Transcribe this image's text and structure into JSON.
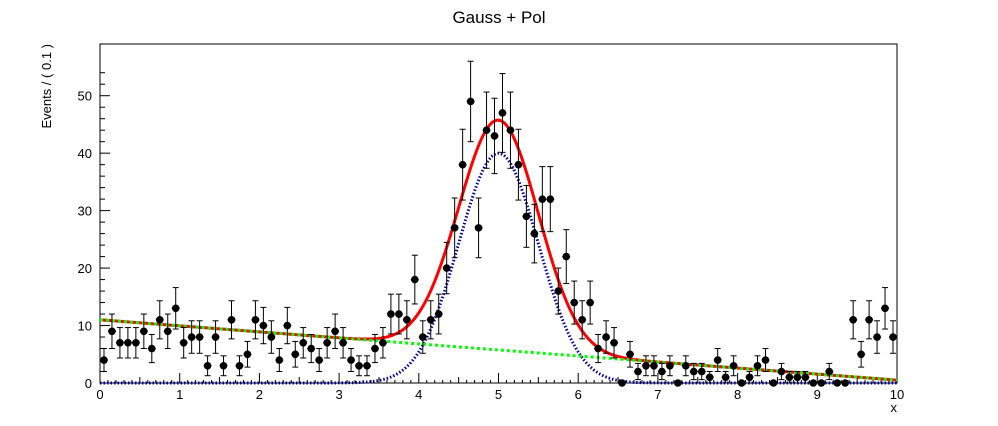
{
  "chart_data": {
    "type": "scatter",
    "title": "Gauss + Pol",
    "xlabel": "x",
    "ylabel": "Events / ( 0.1 )",
    "xlim": [
      0,
      10
    ],
    "ylim": [
      0,
      59
    ],
    "xticks": [
      "0",
      "1",
      "2",
      "3",
      "4",
      "5",
      "6",
      "7",
      "8",
      "9",
      "10"
    ],
    "yticks": [
      "0",
      "10",
      "20",
      "30",
      "40",
      "50"
    ],
    "grid": false,
    "legend": "none",
    "series": [
      {
        "kind": "points-with-errors",
        "color": "#000000",
        "x": [
          0.05,
          0.15,
          0.25,
          0.35,
          0.45,
          0.55,
          0.65,
          0.75,
          0.85,
          0.95,
          1.05,
          1.15,
          1.25,
          1.35,
          1.45,
          1.55,
          1.65,
          1.75,
          1.85,
          1.95,
          2.05,
          2.15,
          2.25,
          2.35,
          2.45,
          2.55,
          2.65,
          2.75,
          2.85,
          2.95,
          3.05,
          3.15,
          3.25,
          3.35,
          3.45,
          3.55,
          3.65,
          3.75,
          3.85,
          3.95,
          4.05,
          4.15,
          4.25,
          4.35,
          4.45,
          4.55,
          4.65,
          4.75,
          4.85,
          4.95,
          5.05,
          5.15,
          5.25,
          5.35,
          5.45,
          5.55,
          5.65,
          5.75,
          5.85,
          5.95,
          6.05,
          6.15,
          6.25,
          6.35,
          6.45,
          6.55,
          6.65,
          6.75,
          6.85,
          6.95,
          7.05,
          7.15,
          7.25,
          7.35,
          7.45,
          7.55,
          7.65,
          7.75,
          7.85,
          7.95,
          8.05,
          8.15,
          8.25,
          8.35,
          8.45,
          8.55,
          8.65,
          8.75,
          8.85,
          8.95,
          9.05,
          9.15,
          9.25,
          9.35,
          9.45,
          9.55,
          9.65,
          9.75,
          9.85,
          9.95
        ],
        "y": [
          4,
          9,
          7,
          7,
          7,
          9,
          6,
          11,
          9,
          13,
          7,
          8,
          8,
          3,
          8,
          3,
          11,
          3,
          5,
          11,
          10,
          8,
          4,
          10,
          5,
          7,
          6,
          4,
          7,
          9,
          7,
          4,
          3,
          3,
          6,
          7,
          12,
          12,
          11,
          18,
          8,
          11,
          12,
          20,
          27,
          38,
          49,
          27,
          44,
          43,
          47,
          44,
          38,
          29,
          26,
          32,
          32,
          16,
          22,
          14,
          11,
          14,
          6,
          8,
          7,
          0,
          5,
          2,
          3,
          3,
          2,
          3,
          0,
          3,
          2,
          2,
          1,
          4,
          1,
          3,
          0,
          1,
          3,
          4,
          0,
          2,
          1,
          1,
          1,
          0,
          0,
          2,
          0,
          0,
          11,
          5,
          11,
          8,
          13,
          8
        ]
      },
      {
        "kind": "curve",
        "name": "",
        "color": "#ff0000",
        "style": "solid",
        "function": "total",
        "mean": 5.0,
        "sigma": 0.5,
        "signal_peak": 40,
        "bkg_intercept": 11,
        "bkg_slope": -1.05
      },
      {
        "kind": "curve",
        "name": "",
        "color": "#000099",
        "style": "dotted",
        "function": "signal"
      },
      {
        "kind": "curve",
        "name": "",
        "color": "#00ff00",
        "style": "dashed",
        "function": "background"
      }
    ]
  }
}
